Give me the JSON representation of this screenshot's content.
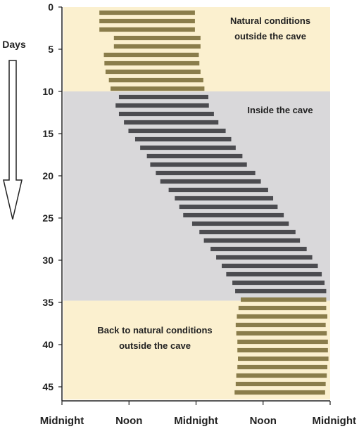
{
  "chart_data": {
    "type": "bar",
    "subtype": "actogram",
    "title": "",
    "xlabel": "",
    "ylabel": "Days",
    "x_tick_labels": [
      "Midnight",
      "Noon",
      "Midnight",
      "Noon",
      "Midnight"
    ],
    "x_tick_values": [
      0,
      12,
      24,
      36,
      48
    ],
    "xlim": [
      0,
      48
    ],
    "y_tick_labels": [
      "0",
      "5",
      "10",
      "15",
      "20",
      "25",
      "30",
      "35",
      "40",
      "45"
    ],
    "y_tick_values": [
      0,
      5,
      10,
      15,
      20,
      25,
      30,
      35,
      40,
      45
    ],
    "ylim": [
      0,
      46.5
    ],
    "y_inverted": true,
    "legend": "none",
    "grid": false,
    "regions": [
      {
        "name": "outside-1",
        "label": [
          "Natural conditions",
          "outside the cave"
        ],
        "days": [
          0,
          10
        ],
        "color": "#fbf0cf"
      },
      {
        "name": "inside",
        "label": [
          "Inside the cave"
        ],
        "days": [
          10,
          34.8
        ],
        "color": "#d9d8da"
      },
      {
        "name": "outside-2",
        "label": [
          "Back to natural conditions",
          "outside the cave"
        ],
        "days": [
          34.8,
          46.5
        ],
        "color": "#fbf0cf"
      }
    ],
    "series": [
      {
        "condition": "outside",
        "color": "#8a7d4b",
        "bars": [
          {
            "day": 1,
            "start": 6.7,
            "end": 23.8
          },
          {
            "day": 2,
            "start": 6.7,
            "end": 23.8
          },
          {
            "day": 3,
            "start": 6.7,
            "end": 23.8
          },
          {
            "day": 4,
            "start": 9.3,
            "end": 24.8
          },
          {
            "day": 5,
            "start": 9.3,
            "end": 24.8
          },
          {
            "day": 6,
            "start": 7.5,
            "end": 24.5
          },
          {
            "day": 7,
            "start": 7.6,
            "end": 24.6
          },
          {
            "day": 8,
            "start": 7.8,
            "end": 24.8
          },
          {
            "day": 9,
            "start": 8.4,
            "end": 25.3
          },
          {
            "day": 10,
            "start": 8.7,
            "end": 25.5
          }
        ]
      },
      {
        "condition": "inside",
        "color": "#4c4c50",
        "bars": [
          {
            "day": 11,
            "start": 10.2,
            "end": 26.2
          },
          {
            "day": 12,
            "start": 9.6,
            "end": 26.3
          },
          {
            "day": 13,
            "start": 10.2,
            "end": 27.2
          },
          {
            "day": 14,
            "start": 11.1,
            "end": 28.0
          },
          {
            "day": 15,
            "start": 11.9,
            "end": 29.3
          },
          {
            "day": 16,
            "start": 13.1,
            "end": 30.3
          },
          {
            "day": 17,
            "start": 14.0,
            "end": 31.1
          },
          {
            "day": 18,
            "start": 15.2,
            "end": 32.3
          },
          {
            "day": 19,
            "start": 15.8,
            "end": 33.1
          },
          {
            "day": 20,
            "start": 16.8,
            "end": 34.6
          },
          {
            "day": 21,
            "start": 17.6,
            "end": 35.6
          },
          {
            "day": 22,
            "start": 19.1,
            "end": 36.9
          },
          {
            "day": 23,
            "start": 20.2,
            "end": 37.8
          },
          {
            "day": 24,
            "start": 21.0,
            "end": 38.6
          },
          {
            "day": 25,
            "start": 21.7,
            "end": 39.7
          },
          {
            "day": 26,
            "start": 23.3,
            "end": 40.6
          },
          {
            "day": 27,
            "start": 24.6,
            "end": 41.8
          },
          {
            "day": 28,
            "start": 25.4,
            "end": 42.6
          },
          {
            "day": 29,
            "start": 26.6,
            "end": 43.8
          },
          {
            "day": 30,
            "start": 27.6,
            "end": 44.8
          },
          {
            "day": 31,
            "start": 28.6,
            "end": 45.8
          },
          {
            "day": 32,
            "start": 29.4,
            "end": 46.5
          },
          {
            "day": 33,
            "start": 30.5,
            "end": 47.0
          },
          {
            "day": 34,
            "start": 31.0,
            "end": 47.3
          }
        ]
      },
      {
        "condition": "outside",
        "color": "#8a7d4b",
        "bars": [
          {
            "day": 35,
            "start": 32.0,
            "end": 47.3
          },
          {
            "day": 36,
            "start": 31.6,
            "end": 47.3
          },
          {
            "day": 37,
            "start": 31.3,
            "end": 47.5
          },
          {
            "day": 38,
            "start": 31.1,
            "end": 47.2
          },
          {
            "day": 39,
            "start": 31.2,
            "end": 47.4
          },
          {
            "day": 40,
            "start": 31.4,
            "end": 47.6
          },
          {
            "day": 41,
            "start": 31.4,
            "end": 47.6
          },
          {
            "day": 42,
            "start": 31.5,
            "end": 47.7
          },
          {
            "day": 43,
            "start": 31.4,
            "end": 47.5
          },
          {
            "day": 44,
            "start": 31.2,
            "end": 47.4
          },
          {
            "day": 45,
            "start": 31.1,
            "end": 47.2
          },
          {
            "day": 46,
            "start": 30.9,
            "end": 47.1
          }
        ]
      }
    ]
  }
}
